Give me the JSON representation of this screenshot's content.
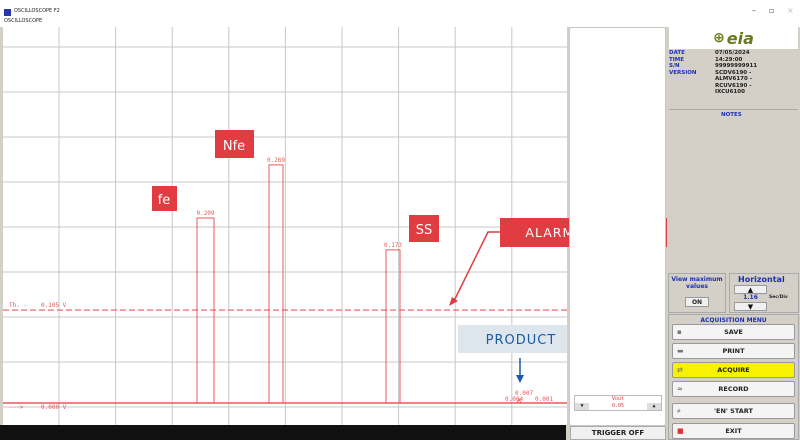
{
  "window": {
    "title": "OSCILLOSCOPE F2",
    "subtitle": "OSCILLOSCOPE",
    "minimize": "–",
    "restore": "▫",
    "close": "×"
  },
  "plot": {
    "threshold_label": "Th. -",
    "threshold_value": "0.105 V",
    "baseline_label": "--->",
    "baseline_value": "0.000 V",
    "threshold": 0.105,
    "peaks": [
      {
        "value": 0.209,
        "label": "0.209"
      },
      {
        "value": 0.269,
        "label": "0.269"
      },
      {
        "value": 0.173,
        "label": "0.173"
      }
    ],
    "small_peak_labels": [
      "0.007",
      "0.004",
      "0.001"
    ],
    "annotations": {
      "fe": "fe",
      "nfe": "Nfe",
      "ss": "SS",
      "alarm": "ALARM THRESHOLD",
      "product": "PRODUCT"
    },
    "colors": {
      "signal": "#e85a5a",
      "annotation": "#e03c41",
      "product_box": "#dde6ec",
      "product_text": "#1c5aa6"
    }
  },
  "vout": {
    "label": "Vout",
    "value": "0.05",
    "down": "▼",
    "up": "▲"
  },
  "trigger": "TRIGGER OFF",
  "info": {
    "logo": "CEIA",
    "rows": [
      {
        "k": "DATE",
        "v": "07/05/2024"
      },
      {
        "k": "TIME",
        "v": "14:29:00"
      },
      {
        "k": "S/N",
        "v": "99999999911"
      },
      {
        "k": "VERSION",
        "v": "SCDV6190 -"
      },
      {
        "k": "",
        "v": "ALMV6170 -"
      },
      {
        "k": "",
        "v": "RCUV6190 -"
      },
      {
        "k": "",
        "v": "IXCU6100"
      }
    ],
    "notes": "NOTES"
  },
  "view_max": {
    "label": "View maximum values",
    "state": "ON"
  },
  "horizontal": {
    "title": "Horizontal",
    "value": "1.16",
    "unit": "Sec/Div",
    "up": "▲",
    "down": "▼"
  },
  "acquisition": {
    "title": "ACQUISITION MENU",
    "save": "SAVE",
    "print": "PRINT",
    "acquire": "ACQUIRE",
    "record": "RECORD",
    "en_start": "'EN' START",
    "exit": "EXIT"
  }
}
